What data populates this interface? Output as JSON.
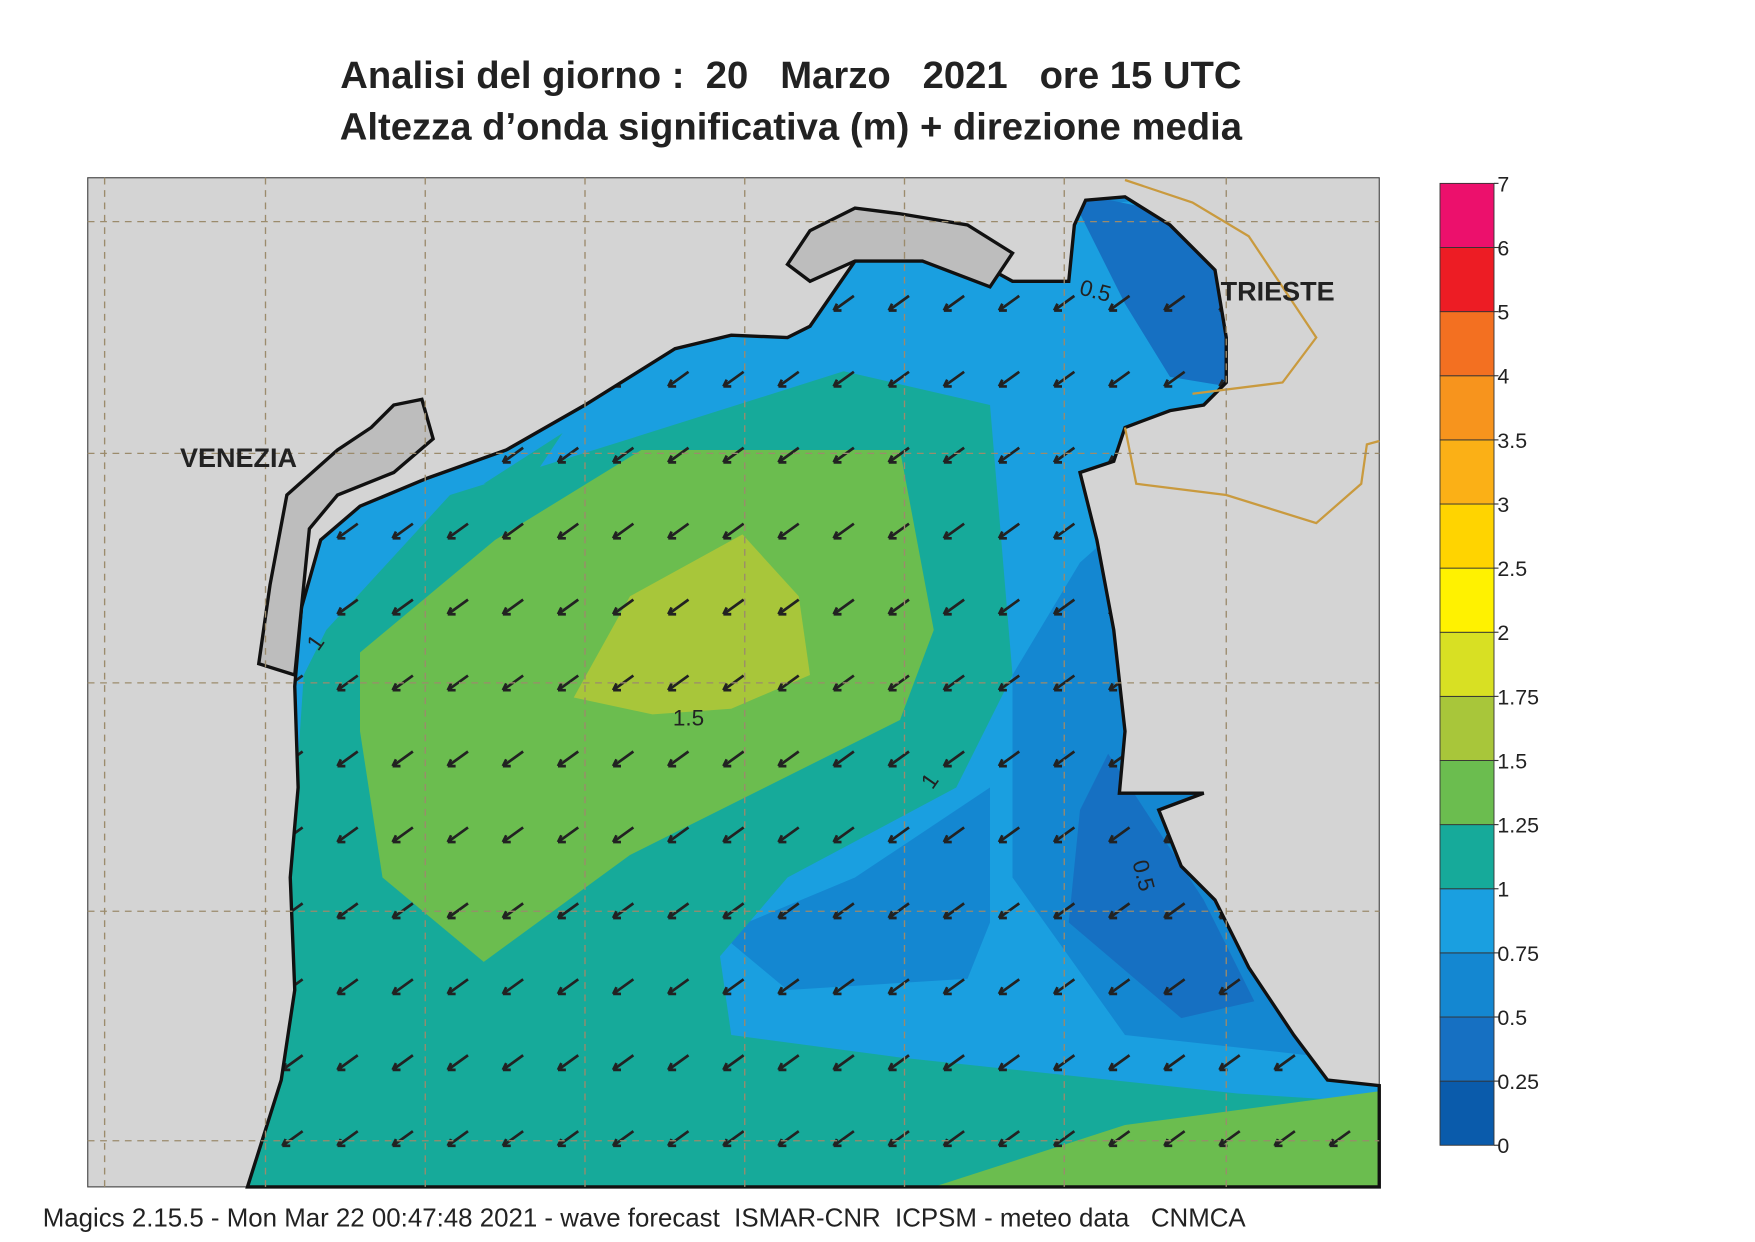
{
  "header": {
    "title": "Analisi del giorno :  20   Marzo   2021   ore 15 UTC",
    "subtitle": "Altezza d’onda significativa (m) + direzione media"
  },
  "places": [
    "VENEZIA",
    "TRIESTE"
  ],
  "contour_labels": [
    0.5,
    1,
    1.5,
    1,
    0.5
  ],
  "colorbar": {
    "levels": [
      0,
      0.25,
      0.5,
      0.75,
      1,
      1.25,
      1.5,
      1.75,
      2,
      2.5,
      3,
      3.5,
      4,
      5,
      6,
      7
    ],
    "colors": [
      "#0a5bab",
      "#1670c2",
      "#1487d1",
      "#1a9fe0",
      "#16aa9a",
      "#6bbd4f",
      "#a8c63a",
      "#d8e023",
      "#fff200",
      "#ffd400",
      "#fbb016",
      "#f7941d",
      "#f37021",
      "#ed1c24",
      "#ec106c"
    ]
  },
  "footer": "Magics 2.15.5 - Mon Mar 22 00:47:48 2021 - wave forecast  ISMAR-CNR  ICPSM - meteo data   CNMCA"
}
